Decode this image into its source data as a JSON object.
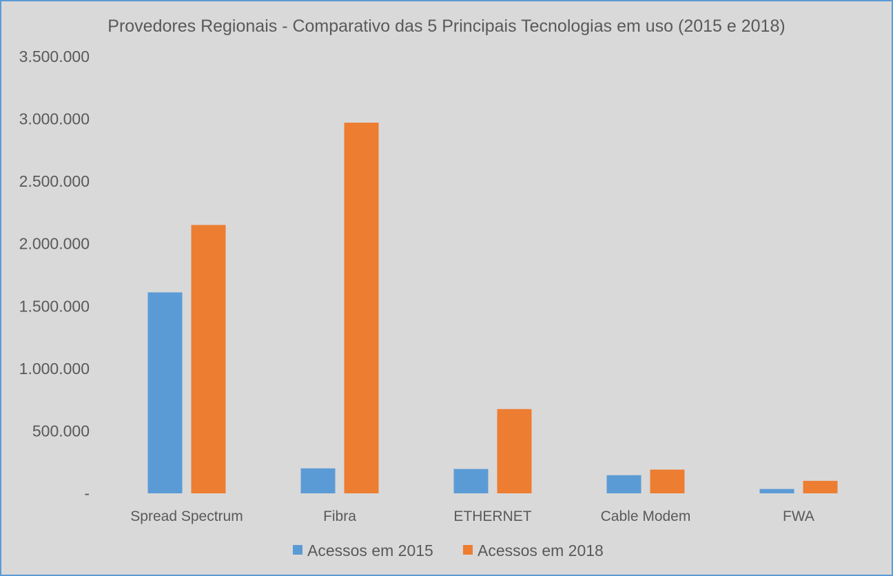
{
  "chart_data": {
    "type": "bar",
    "title": "Provedores Regionais - Comparativo das 5 Principais Tecnologias em uso (2015 e 2018)",
    "categories": [
      "Spread Spectrum",
      "Fibra",
      "ETHERNET",
      "Cable Modem",
      "FWA"
    ],
    "series": [
      {
        "name": "Acessos em 2015",
        "color": "#5b9bd5",
        "values": [
          1610000,
          200000,
          195000,
          145000,
          35000
        ]
      },
      {
        "name": "Acessos em 2018",
        "color": "#ed7d31",
        "values": [
          2150000,
          2970000,
          675000,
          190000,
          100000
        ]
      }
    ],
    "ylim": [
      0,
      3500000
    ],
    "yticks": [
      {
        "value": 0,
        "label": "-"
      },
      {
        "value": 500000,
        "label": "500.000"
      },
      {
        "value": 1000000,
        "label": "1.000.000"
      },
      {
        "value": 1500000,
        "label": "1.500.000"
      },
      {
        "value": 2000000,
        "label": "2.000.000"
      },
      {
        "value": 2500000,
        "label": "2.500.000"
      },
      {
        "value": 3000000,
        "label": "3.000.000"
      },
      {
        "value": 3500000,
        "label": "3.500.000"
      }
    ],
    "grid": false,
    "legend": "bottom-center"
  }
}
